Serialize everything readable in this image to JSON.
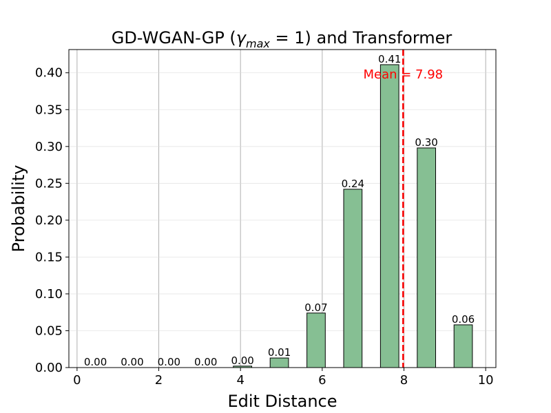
{
  "chart_data": {
    "type": "bar",
    "title": "GD-WGAN-GP (γ_max = 1) and Transformer",
    "title_parts": {
      "prefix": "GD-WGAN-GP (",
      "symbol": "γ",
      "subscript": "max",
      "suffix": " = 1) and Transformer"
    },
    "xlabel": "Edit Distance",
    "ylabel": "Probability",
    "xlim": [
      -0.2,
      10.25
    ],
    "ylim": [
      0,
      0.4315
    ],
    "x_ticks": [
      0,
      2,
      4,
      6,
      8,
      10
    ],
    "y_ticks": [
      0.0,
      0.05,
      0.1,
      0.15,
      0.2,
      0.25,
      0.3,
      0.35,
      0.4
    ],
    "y_tick_decimals": 2,
    "grid": true,
    "bar_width": 0.45,
    "x": [
      0.45,
      1.35,
      2.25,
      3.15,
      4.05,
      4.95,
      5.85,
      6.75,
      7.65,
      8.55,
      9.45
    ],
    "values": [
      0.0,
      0.0,
      0.0,
      0.0,
      0.002,
      0.013,
      0.074,
      0.242,
      0.411,
      0.298,
      0.058
    ],
    "data_labels": [
      "0.00",
      "0.00",
      "0.00",
      "0.00",
      "0.00",
      "0.01",
      "0.07",
      "0.24",
      "0.41",
      "0.30",
      "0.06"
    ],
    "mean_line": {
      "value": 7.98,
      "label": "Mean = 7.98"
    },
    "colors": {
      "bar_fill": "#86bf93",
      "bar_edge": "#000000",
      "mean_line": "#ff0000",
      "grid": "#d9d9d9",
      "text": "#000000"
    }
  }
}
